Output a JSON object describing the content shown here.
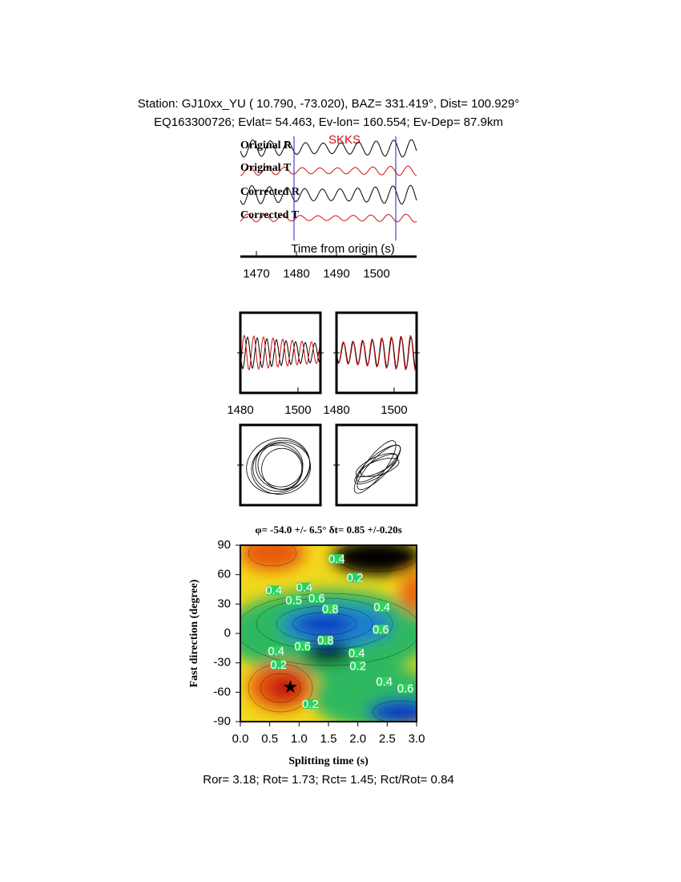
{
  "header": {
    "line1": "Station: GJ10xx_YU (  10.790,  -73.020), BAZ=  331.419°, Dist=  100.929°",
    "line2": "EQ163300726; Evlat=  54.463, Ev-lon= 160.554; Ev-Dep= 87.9km"
  },
  "traces": {
    "labels": [
      "Original R",
      "Original T",
      "Corrected R",
      "Corrected T"
    ],
    "colors": [
      "#000000",
      "#d01010",
      "#000000",
      "#d01010"
    ],
    "phase": "SKKS",
    "window": [
      1479.4,
      1504.8
    ],
    "xlabel": "Time from origin (s)",
    "xlim": [
      1466,
      1510
    ],
    "xticks": [
      1470,
      1480,
      1490,
      1500
    ]
  },
  "waveform_panels": [
    {
      "xlim": [
        1480,
        1507.8
      ],
      "xticks": [
        1480,
        1500
      ]
    },
    {
      "xlim": [
        1480,
        1507.8
      ],
      "xticks": [
        1480,
        1500
      ]
    }
  ],
  "grid_search": {
    "title": "φ= -54.0 +/- 6.5° δt= 0.85 +/-0.20s",
    "xlabel": "Splitting time (s)",
    "ylabel": "Fast direction (degree)",
    "xlim": [
      0,
      3
    ],
    "ylim": [
      -90,
      90
    ],
    "xticks": [
      {
        "value": 0,
        "label": "0.0"
      },
      {
        "value": 0.5,
        "label": "0.5"
      },
      {
        "value": 1,
        "label": "1.0"
      },
      {
        "value": 1.5,
        "label": "1.5"
      },
      {
        "value": 2,
        "label": "2.0"
      },
      {
        "value": 2.5,
        "label": "2.5"
      },
      {
        "value": 3,
        "label": "3.0"
      }
    ],
    "yticks": [
      90,
      60,
      30,
      0,
      -30,
      -60,
      -90
    ],
    "best": {
      "dt": 0.85,
      "phi": -54
    },
    "contour_labels": [
      {
        "text": "0.4",
        "dt": 1.64,
        "phi": 76
      },
      {
        "text": "0.2",
        "dt": 1.95,
        "phi": 57
      },
      {
        "text": "0.4",
        "dt": 0.57,
        "phi": 44
      },
      {
        "text": "0.4",
        "dt": 1.09,
        "phi": 47
      },
      {
        "text": "0.5",
        "dt": 0.91,
        "phi": 34
      },
      {
        "text": "0.6",
        "dt": 1.3,
        "phi": 36
      },
      {
        "text": "0.8",
        "dt": 1.53,
        "phi": 25
      },
      {
        "text": "0.4",
        "dt": 2.41,
        "phi": 27
      },
      {
        "text": "0.6",
        "dt": 2.39,
        "phi": 4
      },
      {
        "text": "0.4",
        "dt": 0.61,
        "phi": -18
      },
      {
        "text": "0.6",
        "dt": 1.06,
        "phi": -13
      },
      {
        "text": "0.8",
        "dt": 1.45,
        "phi": -7
      },
      {
        "text": "0.4",
        "dt": 1.98,
        "phi": -20
      },
      {
        "text": "0.2",
        "dt": 0.65,
        "phi": -32
      },
      {
        "text": "0.2",
        "dt": 2.0,
        "phi": -33
      },
      {
        "text": "0.4",
        "dt": 2.45,
        "phi": -49
      },
      {
        "text": "0.6",
        "dt": 2.81,
        "phi": -56
      },
      {
        "text": "0.2",
        "dt": 1.19,
        "phi": -72
      }
    ]
  },
  "footer": "Ror= 3.18; Rot= 1.73; Rct= 1.45; Rct/Rot= 0.84"
}
